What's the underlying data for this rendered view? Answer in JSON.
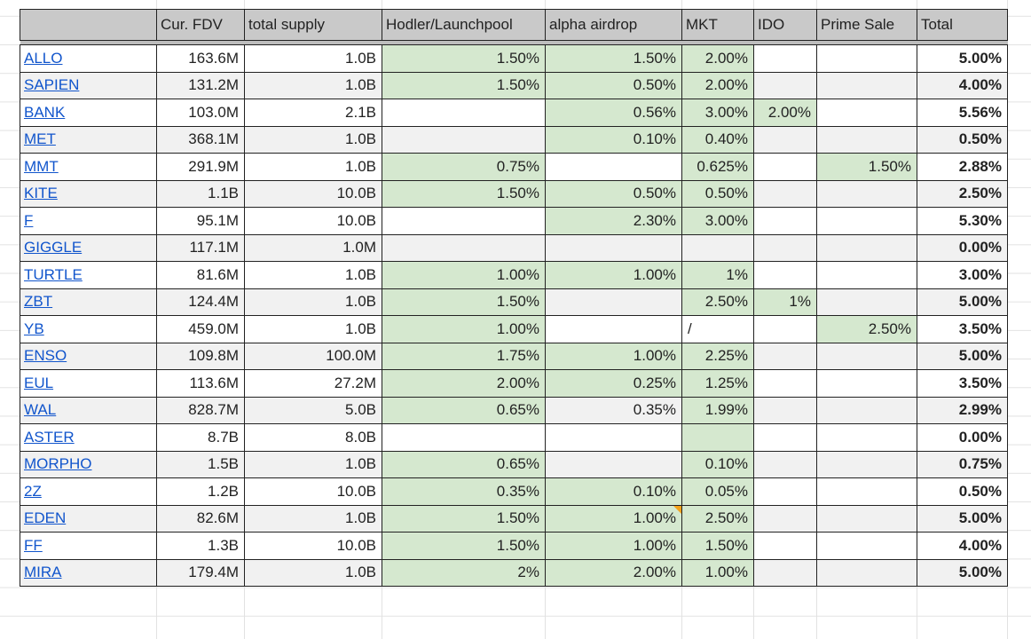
{
  "columns": [
    "",
    "Cur. FDV",
    "total supply",
    "Hodler/Launchpool",
    "alpha airdrop",
    "MKT",
    "IDO",
    "Prime Sale",
    "Total"
  ],
  "highlight_color": "#d5e8cf",
  "link_color": "#1155cc",
  "rows": [
    {
      "name": "ALLO",
      "fdv": "163.6M",
      "supply": "1.0B",
      "hodler": {
        "v": "1.50%",
        "hl": true
      },
      "alpha": {
        "v": "1.50%",
        "hl": true
      },
      "mkt": {
        "v": "2.00%",
        "hl": true
      },
      "ido": {
        "v": "",
        "hl": false
      },
      "prime": {
        "v": "",
        "hl": false
      },
      "total": "5.00%"
    },
    {
      "name": "SAPIEN",
      "fdv": "131.2M",
      "supply": "1.0B",
      "hodler": {
        "v": "1.50%",
        "hl": true
      },
      "alpha": {
        "v": "0.50%",
        "hl": true
      },
      "mkt": {
        "v": "2.00%",
        "hl": true
      },
      "ido": {
        "v": "",
        "hl": false
      },
      "prime": {
        "v": "",
        "hl": false
      },
      "total": "4.00%"
    },
    {
      "name": "BANK",
      "fdv": "103.0M",
      "supply": "2.1B",
      "hodler": {
        "v": "",
        "hl": false
      },
      "alpha": {
        "v": "0.56%",
        "hl": true
      },
      "mkt": {
        "v": "3.00%",
        "hl": true
      },
      "ido": {
        "v": "2.00%",
        "hl": true
      },
      "prime": {
        "v": "",
        "hl": false
      },
      "total": "5.56%"
    },
    {
      "name": "MET",
      "fdv": "368.1M",
      "supply": "1.0B",
      "hodler": {
        "v": "",
        "hl": false
      },
      "alpha": {
        "v": "0.10%",
        "hl": true
      },
      "mkt": {
        "v": "0.40%",
        "hl": true
      },
      "ido": {
        "v": "",
        "hl": false
      },
      "prime": {
        "v": "",
        "hl": false
      },
      "total": "0.50%"
    },
    {
      "name": "MMT",
      "fdv": "291.9M",
      "supply": "1.0B",
      "hodler": {
        "v": "0.75%",
        "hl": true
      },
      "alpha": {
        "v": "",
        "hl": false
      },
      "mkt": {
        "v": "0.625%",
        "hl": true
      },
      "ido": {
        "v": "",
        "hl": false
      },
      "prime": {
        "v": "1.50%",
        "hl": true
      },
      "total": "2.88%"
    },
    {
      "name": "KITE",
      "fdv": "1.1B",
      "supply": "10.0B",
      "hodler": {
        "v": "1.50%",
        "hl": true
      },
      "alpha": {
        "v": "0.50%",
        "hl": true
      },
      "mkt": {
        "v": "0.50%",
        "hl": true
      },
      "ido": {
        "v": "",
        "hl": false
      },
      "prime": {
        "v": "",
        "hl": false
      },
      "total": "2.50%"
    },
    {
      "name": "F",
      "fdv": "95.1M",
      "supply": "10.0B",
      "hodler": {
        "v": "",
        "hl": false
      },
      "alpha": {
        "v": "2.30%",
        "hl": true
      },
      "mkt": {
        "v": "3.00%",
        "hl": true
      },
      "ido": {
        "v": "",
        "hl": false
      },
      "prime": {
        "v": "",
        "hl": false
      },
      "total": "5.30%"
    },
    {
      "name": "GIGGLE",
      "fdv": "117.1M",
      "supply": "1.0M",
      "hodler": {
        "v": "",
        "hl": false
      },
      "alpha": {
        "v": "",
        "hl": false
      },
      "mkt": {
        "v": "",
        "hl": false
      },
      "ido": {
        "v": "",
        "hl": false
      },
      "prime": {
        "v": "",
        "hl": false
      },
      "total": "0.00%"
    },
    {
      "name": "TURTLE",
      "fdv": "81.6M",
      "supply": "1.0B",
      "hodler": {
        "v": "1.00%",
        "hl": true
      },
      "alpha": {
        "v": "1.00%",
        "hl": true
      },
      "mkt": {
        "v": "1%",
        "hl": true
      },
      "ido": {
        "v": "",
        "hl": false
      },
      "prime": {
        "v": "",
        "hl": false
      },
      "total": "3.00%"
    },
    {
      "name": "ZBT",
      "fdv": "124.4M",
      "supply": "1.0B",
      "hodler": {
        "v": "1.50%",
        "hl": true
      },
      "alpha": {
        "v": "",
        "hl": false
      },
      "mkt": {
        "v": "2.50%",
        "hl": true
      },
      "ido": {
        "v": "1%",
        "hl": true
      },
      "prime": {
        "v": "",
        "hl": false
      },
      "total": "5.00%"
    },
    {
      "name": "YB",
      "fdv": "459.0M",
      "supply": "1.0B",
      "hodler": {
        "v": "1.00%",
        "hl": true
      },
      "alpha": {
        "v": "",
        "hl": false
      },
      "mkt": {
        "v": "/",
        "hl": false,
        "left": true
      },
      "ido": {
        "v": "",
        "hl": false
      },
      "prime": {
        "v": "2.50%",
        "hl": true
      },
      "total": "3.50%"
    },
    {
      "name": "ENSO",
      "fdv": "109.8M",
      "supply": "100.0M",
      "hodler": {
        "v": "1.75%",
        "hl": true
      },
      "alpha": {
        "v": "1.00%",
        "hl": true
      },
      "mkt": {
        "v": "2.25%",
        "hl": true
      },
      "ido": {
        "v": "",
        "hl": false
      },
      "prime": {
        "v": "",
        "hl": false
      },
      "total": "5.00%"
    },
    {
      "name": "EUL",
      "fdv": "113.6M",
      "supply": "27.2M",
      "hodler": {
        "v": "2.00%",
        "hl": true
      },
      "alpha": {
        "v": "0.25%",
        "hl": true
      },
      "mkt": {
        "v": "1.25%",
        "hl": true
      },
      "ido": {
        "v": "",
        "hl": false
      },
      "prime": {
        "v": "",
        "hl": false
      },
      "total": "3.50%"
    },
    {
      "name": "WAL",
      "fdv": "828.7M",
      "supply": "5.0B",
      "hodler": {
        "v": "0.65%",
        "hl": true
      },
      "alpha": {
        "v": "0.35%",
        "hl": false
      },
      "mkt": {
        "v": "1.99%",
        "hl": true
      },
      "ido": {
        "v": "",
        "hl": false
      },
      "prime": {
        "v": "",
        "hl": false
      },
      "total": "2.99%"
    },
    {
      "name": "ASTER",
      "fdv": "8.7B",
      "supply": "8.0B",
      "hodler": {
        "v": "",
        "hl": false
      },
      "alpha": {
        "v": "",
        "hl": false
      },
      "mkt": {
        "v": "",
        "hl": true
      },
      "ido": {
        "v": "",
        "hl": false
      },
      "prime": {
        "v": "",
        "hl": false
      },
      "total": "0.00%"
    },
    {
      "name": "MORPHO",
      "fdv": "1.5B",
      "supply": "1.0B",
      "hodler": {
        "v": "0.65%",
        "hl": true
      },
      "alpha": {
        "v": "",
        "hl": false
      },
      "mkt": {
        "v": "0.10%",
        "hl": true
      },
      "ido": {
        "v": "",
        "hl": false
      },
      "prime": {
        "v": "",
        "hl": false
      },
      "total": "0.75%"
    },
    {
      "name": "2Z",
      "fdv": "1.2B",
      "supply": "10.0B",
      "hodler": {
        "v": "0.35%",
        "hl": true
      },
      "alpha": {
        "v": "0.10%",
        "hl": true
      },
      "mkt": {
        "v": "0.05%",
        "hl": true
      },
      "ido": {
        "v": "",
        "hl": false
      },
      "prime": {
        "v": "",
        "hl": false
      },
      "total": "0.50%"
    },
    {
      "name": "EDEN",
      "fdv": "82.6M",
      "supply": "1.0B",
      "hodler": {
        "v": "1.50%",
        "hl": true
      },
      "alpha": {
        "v": "1.00%",
        "hl": true,
        "note": true
      },
      "mkt": {
        "v": "2.50%",
        "hl": true
      },
      "ido": {
        "v": "",
        "hl": false
      },
      "prime": {
        "v": "",
        "hl": false
      },
      "total": "5.00%"
    },
    {
      "name": "FF",
      "fdv": "1.3B",
      "supply": "10.0B",
      "hodler": {
        "v": "1.50%",
        "hl": true
      },
      "alpha": {
        "v": "1.00%",
        "hl": true
      },
      "mkt": {
        "v": "1.50%",
        "hl": true
      },
      "ido": {
        "v": "",
        "hl": false
      },
      "prime": {
        "v": "",
        "hl": false
      },
      "total": "4.00%"
    },
    {
      "name": "MIRA",
      "fdv": "179.4M",
      "supply": "1.0B",
      "hodler": {
        "v": "2%",
        "hl": true
      },
      "alpha": {
        "v": "2.00%",
        "hl": true
      },
      "mkt": {
        "v": "1.00%",
        "hl": true
      },
      "ido": {
        "v": "",
        "hl": false
      },
      "prime": {
        "v": "",
        "hl": false
      },
      "total": "5.00%"
    }
  ]
}
